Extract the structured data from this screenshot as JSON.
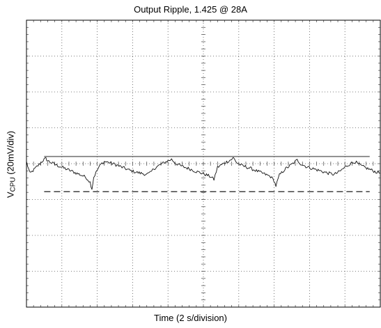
{
  "chart_data": {
    "type": "line",
    "title": "Output Ripple, 1.425 @ 28A",
    "xlabel": "Time (2 s/division)",
    "ylabel": {
      "main": "V",
      "sub": "CPU",
      "suffix": " (20mV/div)"
    },
    "divisions": {
      "x": 10,
      "y": 8
    },
    "xlim": [
      0,
      10
    ],
    "ylim": [
      -4,
      4
    ],
    "grid": true,
    "series": [
      {
        "style": "trace",
        "points": [
          [
            0,
            0.05
          ],
          [
            0.1,
            -0.28
          ],
          [
            0.3,
            -0.08
          ],
          [
            0.5,
            0.12
          ],
          [
            0.55,
            0.14
          ],
          [
            0.6,
            0.08
          ],
          [
            0.8,
            -0.02
          ],
          [
            1.0,
            -0.1
          ],
          [
            1.2,
            -0.18
          ],
          [
            1.4,
            -0.26
          ],
          [
            1.6,
            -0.34
          ],
          [
            1.7,
            -0.4
          ],
          [
            1.8,
            -0.52
          ],
          [
            1.85,
            -0.7
          ],
          [
            1.9,
            -0.38
          ],
          [
            2.0,
            -0.18
          ],
          [
            2.1,
            -0.02
          ],
          [
            2.2,
            0.06
          ],
          [
            2.3,
            0.04
          ],
          [
            2.5,
            -0.02
          ],
          [
            2.7,
            -0.1
          ],
          [
            2.9,
            -0.18
          ],
          [
            3.1,
            -0.24
          ],
          [
            3.3,
            -0.28
          ],
          [
            3.4,
            -0.3
          ],
          [
            3.5,
            -0.26
          ],
          [
            3.6,
            -0.14
          ],
          [
            3.8,
            -0.02
          ],
          [
            4.0,
            0.08
          ],
          [
            4.1,
            0.12
          ],
          [
            4.2,
            0.02
          ],
          [
            4.4,
            -0.08
          ],
          [
            4.6,
            -0.14
          ],
          [
            4.8,
            -0.22
          ],
          [
            5.0,
            -0.28
          ],
          [
            5.2,
            -0.36
          ],
          [
            5.3,
            -0.44
          ],
          [
            5.4,
            -0.1
          ],
          [
            5.6,
            0.02
          ],
          [
            5.8,
            0.12
          ],
          [
            5.85,
            0.16
          ],
          [
            5.95,
            0.02
          ],
          [
            6.1,
            -0.06
          ],
          [
            6.3,
            -0.12
          ],
          [
            6.5,
            -0.2
          ],
          [
            6.7,
            -0.28
          ],
          [
            6.9,
            -0.36
          ],
          [
            7.0,
            -0.48
          ],
          [
            7.05,
            -0.62
          ],
          [
            7.15,
            -0.32
          ],
          [
            7.3,
            -0.16
          ],
          [
            7.5,
            -0.02
          ],
          [
            7.65,
            0.1
          ],
          [
            7.75,
            0.0
          ],
          [
            7.9,
            -0.08
          ],
          [
            8.1,
            -0.14
          ],
          [
            8.3,
            -0.2
          ],
          [
            8.5,
            -0.26
          ],
          [
            8.7,
            -0.3
          ],
          [
            8.85,
            -0.22
          ],
          [
            9.0,
            -0.1
          ],
          [
            9.15,
            0.0
          ],
          [
            9.3,
            0.06
          ],
          [
            9.35,
            0.0
          ],
          [
            9.5,
            -0.08
          ],
          [
            9.7,
            -0.16
          ],
          [
            9.9,
            -0.24
          ],
          [
            10.0,
            -0.26
          ]
        ]
      },
      {
        "style": "solid-level",
        "y": 0.2,
        "x": [
          0.5,
          9.7
        ]
      },
      {
        "style": "dashed-level",
        "y": -0.78,
        "x": [
          0.5,
          9.7
        ]
      }
    ]
  }
}
